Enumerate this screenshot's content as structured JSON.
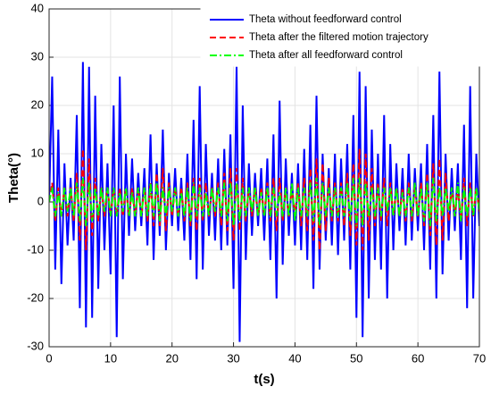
{
  "chart_data": {
    "type": "line",
    "x_label": "t(s)",
    "y_label": "Theta(°)",
    "x": [
      0,
      0.5,
      1,
      1.5,
      2,
      2.5,
      3,
      3.5,
      4,
      4.5,
      5,
      5.5,
      6,
      6.5,
      7,
      7.5,
      8,
      8.5,
      9,
      9.5,
      10,
      10.5,
      11,
      11.5,
      12,
      12.5,
      13,
      13.5,
      14,
      14.5,
      15,
      15.5,
      16,
      16.5,
      17,
      17.5,
      18,
      18.5,
      19,
      19.5,
      20,
      20.5,
      21,
      21.5,
      22,
      22.5,
      23,
      23.5,
      24,
      24.5,
      25,
      25.5,
      26,
      26.5,
      27,
      27.5,
      28,
      28.5,
      29,
      29.5,
      30,
      30.5,
      31,
      31.5,
      32,
      32.5,
      33,
      33.5,
      34,
      34.5,
      35,
      35.5,
      36,
      36.5,
      37,
      37.5,
      38,
      38.5,
      39,
      39.5,
      40,
      40.5,
      41,
      41.5,
      42,
      42.5,
      43,
      43.5,
      44,
      44.5,
      45,
      45.5,
      46,
      46.5,
      47,
      47.5,
      48,
      48.5,
      49,
      49.5,
      50,
      50.5,
      51,
      51.5,
      52,
      52.5,
      53,
      53.5,
      54,
      54.5,
      55,
      55.5,
      56,
      56.5,
      57,
      57.5,
      58,
      58.5,
      59,
      59.5,
      60,
      60.5,
      61,
      61.5,
      62,
      62.5,
      63,
      63.5,
      64,
      64.5,
      65,
      65.5,
      66,
      66.5,
      67,
      67.5,
      68,
      68.5,
      69,
      69.5,
      70
    ],
    "series": [
      {
        "name": "Theta without feedforward control",
        "color": "#0000ff",
        "dash": "solid",
        "values": [
          0,
          26,
          -14,
          15,
          -17,
          8,
          -9,
          5,
          -8,
          18,
          -22,
          29,
          -26,
          28,
          -24,
          22,
          -18,
          12,
          -10,
          8,
          -15,
          20,
          -28,
          26,
          -16,
          10,
          -7,
          9,
          -6,
          6,
          -5,
          7,
          -9,
          14,
          -12,
          8,
          -7,
          15,
          -10,
          6,
          -5,
          7,
          -6,
          5,
          -8,
          10,
          -12,
          17,
          -16,
          24,
          -14,
          12,
          -7,
          6,
          -8,
          9,
          -10,
          11,
          -9,
          14,
          -18,
          28,
          -29,
          20,
          -12,
          8,
          -7,
          6,
          -5,
          7,
          -8,
          9,
          -12,
          14,
          -20,
          21,
          -13,
          9,
          -7,
          6,
          -9,
          8,
          -10,
          11,
          -12,
          16,
          -18,
          22,
          -14,
          10,
          -8,
          7,
          -9,
          10,
          -11,
          9,
          -8,
          12,
          -14,
          18,
          -24,
          27,
          -28,
          24,
          -20,
          15,
          -12,
          10,
          -14,
          18,
          -20,
          12,
          -10,
          8,
          -6,
          7,
          -9,
          10,
          -8,
          7,
          -6,
          8,
          -10,
          12,
          -14,
          18,
          -20,
          27,
          -15,
          10,
          -8,
          7,
          -6,
          8,
          -12,
          16,
          -22,
          24,
          -20,
          10,
          -5
        ]
      },
      {
        "name": "Theta after the filtered motion trajectory",
        "color": "#ff0000",
        "dash": "dashed",
        "values": [
          0,
          4,
          -4,
          3,
          -3,
          3,
          -3,
          3,
          -4,
          6,
          -8,
          11,
          -10,
          9,
          -7,
          5,
          -4,
          3,
          -3,
          3,
          -3,
          3,
          -3,
          3,
          -3,
          3,
          -3,
          3,
          -3,
          3,
          -3,
          3,
          -4,
          4,
          -5,
          6,
          -5,
          7,
          -6,
          4,
          -3,
          3,
          -3,
          3,
          -4,
          4,
          -5,
          5,
          -6,
          5,
          -4,
          4,
          -3,
          3,
          -3,
          4,
          -5,
          6,
          -6,
          7,
          -8,
          7,
          -6,
          5,
          -4,
          3,
          -3,
          3,
          -3,
          3,
          -3,
          4,
          -4,
          5,
          -6,
          5,
          -4,
          3,
          -3,
          3,
          -3,
          4,
          -5,
          5,
          -6,
          7,
          -8,
          9,
          -10,
          8,
          -6,
          5,
          -4,
          4,
          -4,
          4,
          -5,
          6,
          -7,
          8,
          -9,
          11,
          -10,
          10,
          -8,
          7,
          -5,
          4,
          -4,
          5,
          -5,
          4,
          -3,
          3,
          -3,
          3,
          -4,
          4,
          -4,
          3,
          -3,
          4,
          -5,
          6,
          -7,
          8,
          -9,
          9,
          -8,
          6,
          -4,
          3,
          -3,
          3,
          -4,
          5,
          -5,
          4,
          -3,
          3,
          -2
        ]
      },
      {
        "name": "Theta after all feedforward control",
        "color": "#00ff00",
        "dash": "dashdot",
        "values": [
          0,
          3,
          -3,
          2,
          -3,
          3,
          -2,
          3,
          -3,
          4,
          -4,
          5,
          -5,
          4,
          -4,
          3,
          -3,
          3,
          -2,
          3,
          -3,
          3,
          -3,
          2,
          -2,
          3,
          -3,
          2,
          -3,
          3,
          -3,
          3,
          -3,
          4,
          -3,
          4,
          -4,
          3,
          -3,
          3,
          -2,
          3,
          -3,
          2,
          -3,
          3,
          -4,
          4,
          -3,
          3,
          -3,
          2,
          -3,
          3,
          -2,
          3,
          -3,
          4,
          -4,
          4,
          -5,
          4,
          -4,
          3,
          -3,
          3,
          -2,
          3,
          -3,
          2,
          -3,
          3,
          -3,
          3,
          -3,
          2,
          -3,
          3,
          -3,
          4,
          -4,
          3,
          -3,
          3,
          -3,
          4,
          -4,
          5,
          -5,
          4,
          -3,
          3,
          -3,
          3,
          -3,
          3,
          -3,
          4,
          -4,
          5,
          -5,
          5,
          -5,
          4,
          -3,
          3,
          -3,
          3,
          -3,
          3,
          -2,
          3,
          -3,
          3,
          -3,
          2,
          -3,
          3,
          -3,
          4,
          -3,
          3,
          -4,
          4,
          -5,
          5,
          -4,
          3,
          -3,
          3,
          -2,
          3,
          -3,
          4,
          -4,
          3,
          -3,
          3,
          -3,
          3,
          -2
        ]
      }
    ],
    "xlim": [
      0,
      70
    ],
    "xticks": [
      0,
      10,
      20,
      30,
      40,
      50,
      60,
      70
    ],
    "ylim": [
      -30,
      40
    ],
    "yticks": [
      -30,
      -20,
      -10,
      0,
      10,
      20,
      30,
      40
    ],
    "grid": true,
    "legend": "upper right"
  }
}
